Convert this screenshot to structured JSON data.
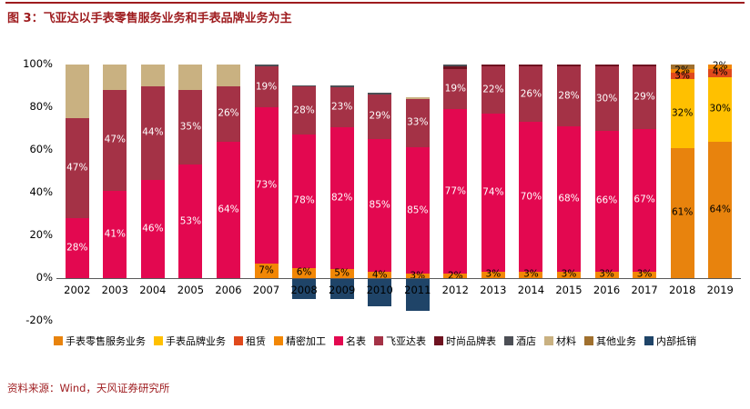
{
  "header": {
    "title": "图 3：飞亚达以手表零售服务业务和手表品牌业务为主"
  },
  "footer": {
    "source": "资料来源：Wind，天风证券研究所"
  },
  "chart_data": {
    "type": "bar",
    "subtype": "stacked-percent-column",
    "title": "图 3：飞亚达以手表零售服务业务和手表品牌业务为主",
    "xlabel": "",
    "ylabel": "",
    "ylim": [
      -20,
      100
    ],
    "grid": false,
    "legend_position": "bottom",
    "y_ticks": [
      "100%",
      "80%",
      "60%",
      "40%",
      "20%",
      "0%",
      "-20%"
    ],
    "legend": [
      "手表零售服务业务",
      "手表品牌业务",
      "租赁",
      "精密加工",
      "名表",
      "飞亚达表",
      "时尚品牌表",
      "酒店",
      "材料",
      "其他业务",
      "内部抵销"
    ],
    "series_colors": {
      "手表零售服务业务": "#E8830D",
      "手表品牌业务": "#FFC000",
      "租赁": "#E0491C",
      "精密加工": "#F28705",
      "名表": "#E30850",
      "飞亚达表": "#A43246",
      "时尚品牌表": "#6E1220",
      "酒店": "#4C4F55",
      "材料": "#C9B181",
      "其他业务": "#A0702E",
      "内部抵销": "#1F4468"
    },
    "white_label_series": [
      "名表",
      "飞亚达表",
      "时尚品牌表",
      "酒店",
      "内部抵销"
    ],
    "years": [
      {
        "year": "2002",
        "offset": 0,
        "segments": [
          {
            "s": "名表",
            "v": 28,
            "label": "28%"
          },
          {
            "s": "飞亚达表",
            "v": 47,
            "label": "47%"
          },
          {
            "s": "材料",
            "v": 25,
            "label": ""
          }
        ]
      },
      {
        "year": "2003",
        "offset": 0,
        "segments": [
          {
            "s": "名表",
            "v": 41,
            "label": "41%"
          },
          {
            "s": "飞亚达表",
            "v": 47,
            "label": "47%"
          },
          {
            "s": "材料",
            "v": 12,
            "label": ""
          }
        ]
      },
      {
        "year": "2004",
        "offset": 0,
        "segments": [
          {
            "s": "名表",
            "v": 46,
            "label": "46%"
          },
          {
            "s": "飞亚达表",
            "v": 44,
            "label": "44%"
          },
          {
            "s": "材料",
            "v": 10,
            "label": ""
          }
        ]
      },
      {
        "year": "2005",
        "offset": 0,
        "segments": [
          {
            "s": "名表",
            "v": 53,
            "label": "53%"
          },
          {
            "s": "飞亚达表",
            "v": 35,
            "label": "35%"
          },
          {
            "s": "材料",
            "v": 12,
            "label": ""
          }
        ]
      },
      {
        "year": "2006",
        "offset": 0,
        "segments": [
          {
            "s": "名表",
            "v": 64,
            "label": "64%"
          },
          {
            "s": "飞亚达表",
            "v": 26,
            "label": "26%"
          },
          {
            "s": "材料",
            "v": 10,
            "label": ""
          }
        ]
      },
      {
        "year": "2007",
        "offset": 0,
        "segments": [
          {
            "s": "精密加工",
            "v": 7,
            "label": "7%"
          },
          {
            "s": "名表",
            "v": 73,
            "label": "73%"
          },
          {
            "s": "飞亚达表",
            "v": 19,
            "label": "19%"
          },
          {
            "s": "酒店",
            "v": 1,
            "label": ""
          }
        ]
      },
      {
        "year": "2008",
        "offset": -12,
        "segments": [
          {
            "s": "精密加工",
            "v": 6,
            "label": "6%"
          },
          {
            "s": "名表",
            "v": 78,
            "label": "78%"
          },
          {
            "s": "飞亚达表",
            "v": 28,
            "label": "28%"
          },
          {
            "s": "酒店",
            "v": 1,
            "label": ""
          }
        ]
      },
      {
        "year": "2009",
        "offset": -12,
        "segments": [
          {
            "s": "精密加工",
            "v": 5,
            "label": "5%"
          },
          {
            "s": "名表",
            "v": 82,
            "label": "82%"
          },
          {
            "s": "飞亚达表",
            "v": 23,
            "label": "23%"
          },
          {
            "s": "酒店",
            "v": 1,
            "label": ""
          }
        ]
      },
      {
        "year": "2010",
        "offset": -18,
        "segments": [
          {
            "s": "精密加工",
            "v": 4,
            "label": "4%"
          },
          {
            "s": "名表",
            "v": 85,
            "label": "85%"
          },
          {
            "s": "飞亚达表",
            "v": 29,
            "label": "29%"
          },
          {
            "s": "酒店",
            "v": 1,
            "label": ""
          }
        ]
      },
      {
        "year": "2011",
        "offset": -22,
        "segments": [
          {
            "s": "精密加工",
            "v": 3,
            "label": "3%"
          },
          {
            "s": "名表",
            "v": 85,
            "label": "85%"
          },
          {
            "s": "飞亚达表",
            "v": 33,
            "label": "33%"
          },
          {
            "s": "材料",
            "v": 1,
            "label": ""
          }
        ]
      },
      {
        "year": "2012",
        "offset": 0,
        "segments": [
          {
            "s": "精密加工",
            "v": 2,
            "label": "2%"
          },
          {
            "s": "名表",
            "v": 77,
            "label": "77%"
          },
          {
            "s": "飞亚达表",
            "v": 19,
            "label": "19%"
          },
          {
            "s": "时尚品牌表",
            "v": 1,
            "label": ""
          },
          {
            "s": "酒店",
            "v": 1,
            "label": ""
          }
        ]
      },
      {
        "year": "2013",
        "offset": 0,
        "segments": [
          {
            "s": "精密加工",
            "v": 3,
            "label": "3%"
          },
          {
            "s": "名表",
            "v": 74,
            "label": "74%"
          },
          {
            "s": "飞亚达表",
            "v": 22,
            "label": "22%"
          },
          {
            "s": "时尚品牌表",
            "v": 1,
            "label": ""
          }
        ]
      },
      {
        "year": "2014",
        "offset": 0,
        "segments": [
          {
            "s": "精密加工",
            "v": 3,
            "label": "3%"
          },
          {
            "s": "名表",
            "v": 70,
            "label": "70%"
          },
          {
            "s": "飞亚达表",
            "v": 26,
            "label": "26%"
          },
          {
            "s": "时尚品牌表",
            "v": 1,
            "label": ""
          }
        ]
      },
      {
        "year": "2015",
        "offset": 0,
        "segments": [
          {
            "s": "精密加工",
            "v": 3,
            "label": "3%"
          },
          {
            "s": "名表",
            "v": 68,
            "label": "68%"
          },
          {
            "s": "飞亚达表",
            "v": 28,
            "label": "28%"
          },
          {
            "s": "时尚品牌表",
            "v": 1,
            "label": ""
          }
        ]
      },
      {
        "year": "2016",
        "offset": 0,
        "segments": [
          {
            "s": "精密加工",
            "v": 3,
            "label": "3%"
          },
          {
            "s": "名表",
            "v": 66,
            "label": "66%"
          },
          {
            "s": "飞亚达表",
            "v": 30,
            "label": "30%"
          },
          {
            "s": "时尚品牌表",
            "v": 1,
            "label": ""
          }
        ]
      },
      {
        "year": "2017",
        "offset": 0,
        "segments": [
          {
            "s": "精密加工",
            "v": 3,
            "label": "3%"
          },
          {
            "s": "名表",
            "v": 67,
            "label": "67%"
          },
          {
            "s": "飞亚达表",
            "v": 29,
            "label": "29%"
          },
          {
            "s": "时尚品牌表",
            "v": 1,
            "label": ""
          }
        ]
      },
      {
        "year": "2018",
        "offset": 0,
        "segments": [
          {
            "s": "手表零售服务业务",
            "v": 61,
            "label": "61%"
          },
          {
            "s": "手表品牌业务",
            "v": 32,
            "label": "32%"
          },
          {
            "s": "租赁",
            "v": 3,
            "label": "3%"
          },
          {
            "s": "精密加工",
            "v": 2,
            "label": "2%"
          },
          {
            "s": "其他业务",
            "v": 2,
            "label": ""
          }
        ]
      },
      {
        "year": "2019",
        "offset": 0,
        "segments": [
          {
            "s": "手表零售服务业务",
            "v": 64,
            "label": "64%"
          },
          {
            "s": "手表品牌业务",
            "v": 30,
            "label": "30%"
          },
          {
            "s": "租赁",
            "v": 4,
            "label": "4%"
          },
          {
            "s": "精密加工",
            "v": 2,
            "label": "2%"
          }
        ]
      }
    ]
  }
}
